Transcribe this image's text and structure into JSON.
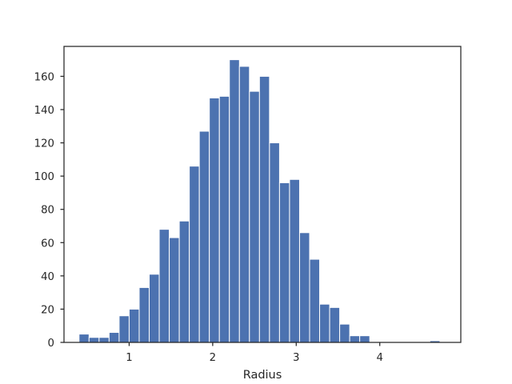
{
  "chart_data": {
    "type": "bar",
    "subtype": "histogram",
    "title": "",
    "xlabel": "Radius",
    "ylabel": "",
    "xlim": [
      0.22,
      4.97
    ],
    "ylim": [
      0,
      178
    ],
    "xticks": [
      1,
      2,
      3,
      4
    ],
    "yticks": [
      0,
      20,
      40,
      60,
      80,
      100,
      120,
      140,
      160
    ],
    "grid": false,
    "bar_color": "#4c72b0",
    "edge_color": "#ffffff",
    "bin_edges": [
      0.4,
      0.52,
      0.64,
      0.76,
      0.88,
      1.0,
      1.12,
      1.24,
      1.36,
      1.48,
      1.6,
      1.72,
      1.84,
      1.96,
      2.08,
      2.2,
      2.32,
      2.44,
      2.56,
      2.68,
      2.8,
      2.92,
      3.04,
      3.16,
      3.28,
      3.4,
      3.52,
      3.64,
      3.76,
      3.88,
      4.0,
      4.12,
      4.24,
      4.36,
      4.48,
      4.6,
      4.72
    ],
    "values": [
      5,
      3,
      3,
      6,
      16,
      20,
      33,
      41,
      68,
      63,
      73,
      106,
      127,
      147,
      148,
      170,
      166,
      151,
      160,
      120,
      96,
      98,
      66,
      50,
      23,
      21,
      11,
      4,
      4,
      0,
      0,
      0,
      0,
      0,
      0,
      1
    ]
  }
}
